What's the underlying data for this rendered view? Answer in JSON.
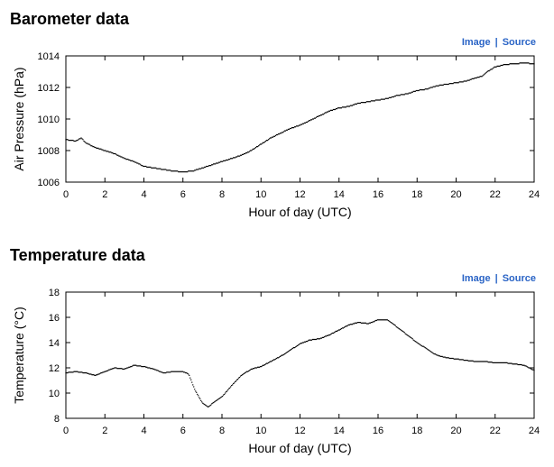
{
  "sections": [
    {
      "title": "Barometer data",
      "links": {
        "image": "Image",
        "separator": "|",
        "source": "Source"
      }
    },
    {
      "title": "Temperature data",
      "links": {
        "image": "Image",
        "separator": "|",
        "source": "Source"
      }
    }
  ],
  "chart_data": [
    {
      "type": "scatter",
      "xlabel": "Hour of day (UTC)",
      "ylabel": "Air Pressure (hPa)",
      "xlim": [
        0,
        24
      ],
      "ylim": [
        1006,
        1014
      ],
      "xticks": [
        0,
        2,
        4,
        6,
        8,
        10,
        12,
        14,
        16,
        18,
        20,
        22,
        24
      ],
      "yticks": [
        1006,
        1008,
        1010,
        1012,
        1014
      ],
      "marker_color": "#000000",
      "grid": false,
      "points": {
        "x": [
          0,
          0.5,
          0.8,
          1,
          1.5,
          2,
          2.5,
          3,
          3.5,
          4,
          4.5,
          5,
          5.5,
          6,
          6.5,
          7,
          7.5,
          8,
          8.5,
          9,
          9.5,
          10,
          10.5,
          11,
          11.5,
          12,
          12.5,
          13,
          13.5,
          14,
          14.5,
          15,
          15.5,
          16,
          16.5,
          17,
          17.5,
          18,
          18.5,
          19,
          19.5,
          20,
          20.5,
          21,
          21.3,
          21.6,
          22,
          22.5,
          23,
          23.5,
          24
        ],
        "y": [
          1008.7,
          1008.6,
          1008.8,
          1008.5,
          1008.2,
          1008.0,
          1007.8,
          1007.5,
          1007.3,
          1007.0,
          1006.9,
          1006.8,
          1006.7,
          1006.65,
          1006.7,
          1006.9,
          1007.1,
          1007.3,
          1007.5,
          1007.7,
          1008.0,
          1008.4,
          1008.8,
          1009.1,
          1009.4,
          1009.6,
          1009.9,
          1010.2,
          1010.5,
          1010.7,
          1010.8,
          1011.0,
          1011.1,
          1011.2,
          1011.3,
          1011.5,
          1011.6,
          1011.8,
          1011.9,
          1012.1,
          1012.2,
          1012.3,
          1012.4,
          1012.6,
          1012.7,
          1013.0,
          1013.3,
          1013.45,
          1013.5,
          1013.55,
          1013.5
        ]
      }
    },
    {
      "type": "scatter",
      "xlabel": "Hour of day (UTC)",
      "ylabel": "Temperature (°C)",
      "xlim": [
        0,
        24
      ],
      "ylim": [
        8,
        18
      ],
      "xticks": [
        0,
        2,
        4,
        6,
        8,
        10,
        12,
        14,
        16,
        18,
        20,
        22,
        24
      ],
      "yticks": [
        8,
        10,
        12,
        14,
        16,
        18
      ],
      "marker_color": "#000000",
      "grid": false,
      "points": {
        "x": [
          0,
          0.5,
          1,
          1.5,
          2,
          2.5,
          3,
          3.5,
          4,
          4.5,
          5,
          5.5,
          6,
          6.3,
          6.6,
          7,
          7.3,
          7.6,
          8,
          8.5,
          9,
          9.5,
          10,
          10.5,
          11,
          11.5,
          12,
          12.5,
          13,
          13.5,
          14,
          14.5,
          15,
          15.5,
          16,
          16.5,
          17,
          17.5,
          18,
          18.5,
          19,
          19.5,
          20,
          20.5,
          21,
          21.5,
          22,
          22.5,
          23,
          23.5,
          24
        ],
        "y": [
          11.6,
          11.7,
          11.6,
          11.4,
          11.7,
          12.0,
          11.9,
          12.2,
          12.1,
          11.9,
          11.6,
          11.7,
          11.7,
          11.5,
          10.3,
          9.2,
          8.9,
          9.3,
          9.7,
          10.6,
          11.4,
          11.9,
          12.1,
          12.5,
          12.9,
          13.4,
          13.9,
          14.2,
          14.3,
          14.6,
          15.0,
          15.4,
          15.6,
          15.5,
          15.8,
          15.8,
          15.2,
          14.6,
          14.0,
          13.5,
          13.0,
          12.8,
          12.7,
          12.6,
          12.5,
          12.5,
          12.4,
          12.4,
          12.3,
          12.2,
          11.8
        ]
      }
    }
  ]
}
